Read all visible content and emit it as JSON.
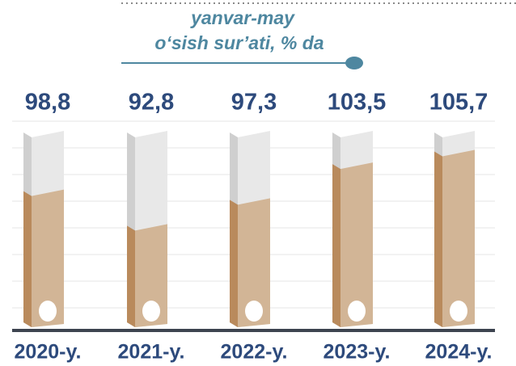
{
  "chart_data": {
    "type": "bar",
    "title": "yanvar-may",
    "subtitle": "o‘sish sur’ati, % da",
    "categories": [
      "2020-y.",
      "2021-y.",
      "2022-y.",
      "2023-y.",
      "2024-y."
    ],
    "values": [
      98.8,
      92.8,
      97.3,
      103.5,
      105.7
    ],
    "value_labels": [
      "98,8",
      "92,8",
      "97,3",
      "103,5",
      "105,7"
    ],
    "color": "#d2b596",
    "ylim": [
      76,
      109
    ]
  }
}
